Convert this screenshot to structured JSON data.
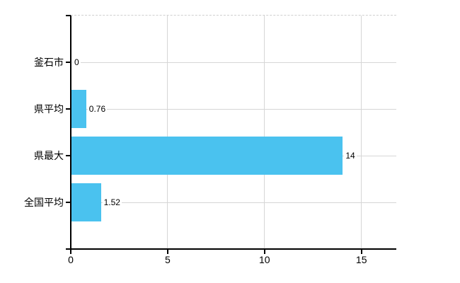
{
  "chart_data": {
    "type": "bar",
    "orientation": "horizontal",
    "title": "",
    "xlabel": "",
    "ylabel": "",
    "categories": [
      "釜石市",
      "県平均",
      "県最大",
      "全国平均"
    ],
    "values": [
      0,
      0.76,
      14,
      1.52
    ],
    "value_labels": [
      "0",
      "0.76",
      "14",
      "1.52"
    ],
    "x_ticks": [
      0,
      5,
      10,
      15
    ],
    "x_tick_labels": [
      "0",
      "5",
      "10",
      "15"
    ],
    "xlim": [
      0,
      16.8
    ],
    "grid": true,
    "grid_style": "solid vertical and horizontal light-gray lines, dashed light top border",
    "legend": false,
    "colors": {
      "bar": "#4ac2ef",
      "grid": "#d6d6d6",
      "axis": "#000000",
      "text": "#000000",
      "background": "#ffffff",
      "top_border": "#cfcfcf"
    }
  }
}
